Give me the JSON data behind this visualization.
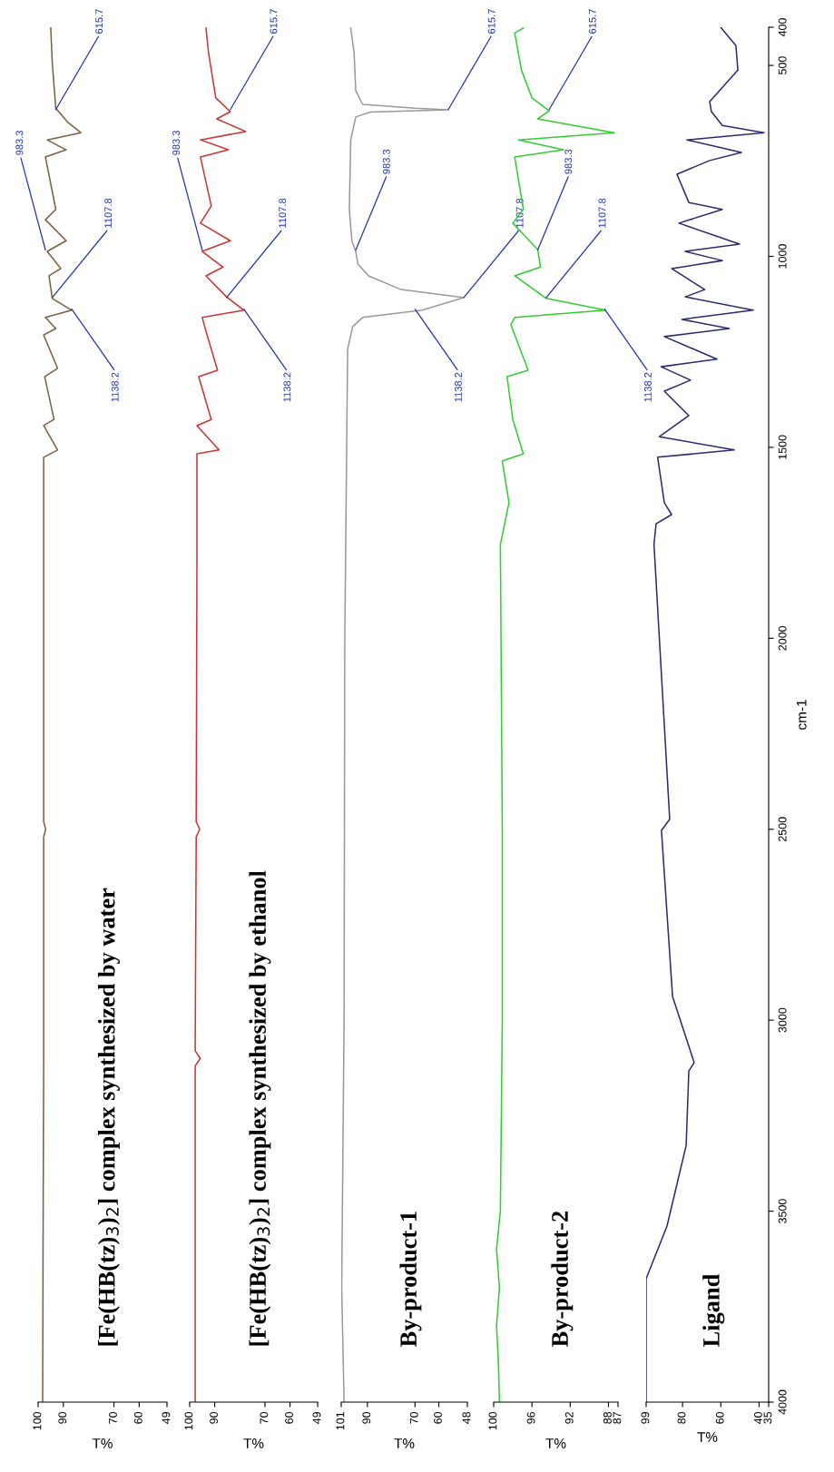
{
  "chart_data": [
    {
      "type": "line",
      "orientation": "horizontal",
      "title": "[Fe(HB(tz)$_{3}$)$_{2}$] complex synthesized by water",
      "xlabel": "T%",
      "x": [
        402,
        493,
        612,
        650,
        676,
        695,
        721,
        740,
        877,
        904,
        959,
        987,
        1032,
        1051,
        1110,
        1141,
        1160,
        1189,
        1206,
        1293,
        1315,
        1427,
        1443,
        1507,
        1526,
        1790,
        2480,
        2500,
        2520,
        3100,
        3500,
        4000
      ],
      "series": [
        {
          "color": "#7a6040",
          "values": [
            95.0,
            94.4,
            93.0,
            88.1,
            83.1,
            96.4,
            88.9,
            97.1,
            93.0,
            97.1,
            88.9,
            96.4,
            91.0,
            95.7,
            94.4,
            86.7,
            97.1,
            93.0,
            97.8,
            92.3,
            97.4,
            93.7,
            97.8,
            92.3,
            97.8,
            97.8,
            97.8,
            97.0,
            97.8,
            97.8,
            98.0,
            98.2
          ]
        }
      ],
      "xlim": [
        100,
        49
      ],
      "xticks": [
        100,
        90,
        70,
        60,
        49
      ],
      "ylim": [
        4000,
        400
      ],
      "tick_labels": "x",
      "annotations": [
        {
          "text": "615.7",
          "x": 93.0,
          "y": 615.7
        },
        {
          "text": "983.3",
          "x": 97.1,
          "y": 983.3
        },
        {
          "text": "1107.8",
          "x": 94.4,
          "y": 1107.8
        },
        {
          "text": "1138.2",
          "x": 86.7,
          "y": 1138.2
        }
      ]
    },
    {
      "type": "line",
      "orientation": "horizontal",
      "title": "[Fe(HB(tz)$_{3}$)$_{2}$] complex synthesized by ethanol",
      "xlabel": "T%",
      "x": [
        402,
        466,
        585,
        621,
        640,
        673,
        695,
        721,
        740,
        868,
        913,
        959,
        987,
        1028,
        1051,
        1106,
        1141,
        1160,
        1196,
        1298,
        1315,
        1427,
        1443,
        1507,
        1517,
        1790,
        2480,
        2500,
        2520,
        3080,
        3100,
        3120,
        4000
      ],
      "series": [
        {
          "color": "#cc3333",
          "values": [
            93.5,
            92.5,
            89.6,
            83.8,
            89.2,
            77.7,
            95.7,
            84.6,
            95.7,
            91.4,
            95.7,
            83.8,
            95.0,
            86.7,
            93.5,
            85.3,
            78.4,
            95.0,
            93.5,
            88.9,
            96.4,
            91.4,
            97.1,
            88.3,
            97.1,
            97.1,
            97.4,
            96.0,
            97.4,
            97.8,
            95.8,
            97.8,
            97.8
          ]
        }
      ],
      "xlim": [
        100,
        49
      ],
      "xticks": [
        100,
        90,
        70,
        60,
        49
      ],
      "ylim": [
        4000,
        400
      ],
      "tick_labels": "x",
      "annotations": [
        {
          "text": "615.7",
          "x": 83.8,
          "y": 615.7
        },
        {
          "text": "983.3",
          "x": 95.0,
          "y": 983.3
        },
        {
          "text": "1107.8",
          "x": 85.3,
          "y": 1107.8
        },
        {
          "text": "1138.2",
          "x": 78.4,
          "y": 1138.2
        }
      ]
    },
    {
      "type": "line",
      "orientation": "horizontal",
      "title": "By-product-1",
      "xlabel": "T%",
      "x": [
        402,
        466,
        566,
        602,
        612,
        616,
        622,
        635,
        695,
        877,
        960,
        987,
        1020,
        1051,
        1087,
        1108,
        1141,
        1160,
        1184,
        1243,
        2000,
        3000,
        3700,
        4000
      ],
      "series": [
        {
          "color": "#999999",
          "values": [
            97.0,
            95.6,
            94.9,
            92.0,
            70.0,
            56.0,
            88.8,
            94.9,
            97.0,
            97.6,
            96.5,
            94.9,
            94.0,
            89.5,
            75.8,
            49.5,
            67.0,
            92.0,
            96.2,
            98.3,
            99.5,
            99.8,
            100.8,
            99.8
          ]
        }
      ],
      "xlim": [
        101,
        48
      ],
      "xticks": [
        101,
        90,
        70,
        60,
        48
      ],
      "ylim": [
        4000,
        400
      ],
      "tick_labels": "x",
      "annotations": [
        {
          "text": "615.7",
          "x": 56.0,
          "y": 615.7
        },
        {
          "text": "983.3",
          "x": 94.9,
          "y": 983.3
        },
        {
          "text": "1107.8",
          "x": 49.5,
          "y": 1107.8
        },
        {
          "text": "1138.2",
          "x": 70.0,
          "y": 1138.2
        }
      ]
    },
    {
      "type": "line",
      "orientation": "horizontal",
      "title": "By-product-2",
      "xlabel": "T%",
      "x": [
        402,
        415,
        512,
        585,
        619,
        640,
        676,
        695,
        721,
        740,
        877,
        913,
        982,
        1028,
        1051,
        1110,
        1141,
        1160,
        1179,
        1298,
        1315,
        1427,
        1517,
        1536,
        1645,
        1754,
        2500,
        3000,
        3500,
        3600,
        3700,
        3800,
        3900,
        4000
      ],
      "series": [
        {
          "color": "#33cc33",
          "values": [
            96.9,
            97.8,
            97.1,
            96.0,
            94.2,
            95.4,
            87.4,
            97.4,
            92.7,
            97.8,
            96.9,
            98.0,
            95.4,
            95.1,
            97.8,
            94.5,
            88.3,
            97.8,
            98.2,
            96.4,
            98.6,
            98.0,
            96.9,
            99.1,
            98.4,
            99.3,
            99.1,
            99.1,
            99.3,
            99.7,
            99.4,
            99.7,
            99.5,
            99.4
          ]
        }
      ],
      "xlim": [
        100,
        87
      ],
      "xticks": [
        100,
        96,
        92,
        88,
        87
      ],
      "ylim": [
        4000,
        400
      ],
      "tick_labels": "x",
      "annotations": [
        {
          "text": "615.7",
          "x": 94.2,
          "y": 615.7
        },
        {
          "text": "983.3",
          "x": 95.4,
          "y": 983.3
        },
        {
          "text": "1107.8",
          "x": 94.5,
          "y": 1107.8
        },
        {
          "text": "1138.2",
          "x": 88.4,
          "y": 1138.2
        }
      ]
    },
    {
      "type": "line",
      "orientation": "horizontal",
      "title": "Ligand",
      "xlabel": "T%",
      "ylabel": "cm-1",
      "x": [
        400,
        448,
        512,
        595,
        621,
        657,
        676,
        695,
        728,
        749,
        785,
        859,
        877,
        913,
        968,
        987,
        1011,
        1032,
        1087,
        1106,
        1141,
        1165,
        1189,
        1210,
        1269,
        1289,
        1324,
        1353,
        1417,
        1472,
        1507,
        1526,
        1645,
        1676,
        1700,
        1754,
        2474,
        2503,
        2938,
        3111,
        3133,
        3328,
        3539,
        3677,
        4000
      ],
      "series": [
        {
          "color": "#2a2a70",
          "values": [
            60.1,
            52.1,
            51.1,
            65.8,
            64.9,
            59.2,
            37.4,
            77.7,
            49.2,
            65.8,
            82.9,
            76.7,
            59.2,
            81.9,
            50.2,
            78.6,
            59.2,
            85.7,
            68.4,
            78.6,
            43.1,
            80.3,
            55.6,
            89.5,
            62.0,
            91.2,
            75.8,
            89.5,
            76.7,
            92.1,
            53.0,
            93.0,
            89.5,
            85.7,
            93.8,
            94.9,
            86.7,
            91.0,
            85.2,
            73.9,
            76.7,
            78.1,
            88.1,
            99.0,
            99.0
          ]
        }
      ],
      "xlim": [
        99,
        35
      ],
      "xticks": [
        99,
        80,
        60,
        40,
        35
      ],
      "ylim": [
        4000,
        400
      ],
      "yticks": [
        4000,
        3500,
        3000,
        2500,
        2000,
        1500,
        1000,
        500,
        400
      ]
    }
  ]
}
